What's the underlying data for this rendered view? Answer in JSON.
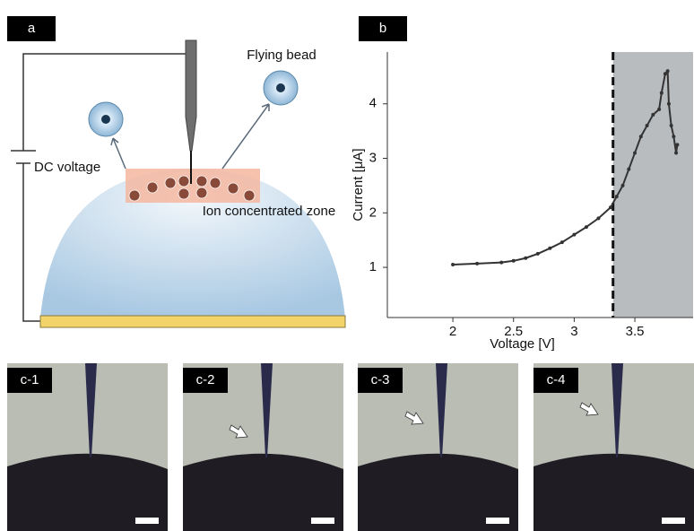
{
  "diagram": {
    "label": "a",
    "bead_label": "Flying bead",
    "voltage_label": "DC voltage",
    "zone_label": "Ion concentrated zone"
  },
  "chart_data": {
    "type": "line",
    "label": "b",
    "x_label": "Voltage [V]",
    "y_label": "Current [μA]",
    "x": [
      2.0,
      2.2,
      2.4,
      2.5,
      2.6,
      2.7,
      2.8,
      2.9,
      3.0,
      3.1,
      3.2,
      3.3,
      3.35,
      3.4,
      3.45,
      3.5,
      3.55,
      3.6,
      3.65,
      3.7,
      3.72,
      3.75,
      3.77,
      3.78,
      3.8,
      3.82,
      3.84,
      3.85
    ],
    "values": [
      1.05,
      1.07,
      1.09,
      1.12,
      1.17,
      1.25,
      1.35,
      1.46,
      1.6,
      1.74,
      1.9,
      2.1,
      2.3,
      2.5,
      2.8,
      3.1,
      3.4,
      3.6,
      3.8,
      3.9,
      4.2,
      4.55,
      4.6,
      4.0,
      3.6,
      3.4,
      3.1,
      3.25
    ],
    "color": "#333333",
    "threshold": 3.32,
    "shade_color": "#b9bcbf",
    "xlim": [
      1.46,
      3.98
    ],
    "ylim": [
      0.08,
      4.95
    ],
    "xticks": [
      2,
      2.5,
      3,
      3.5
    ],
    "yticks": [
      1,
      2,
      3,
      4
    ]
  },
  "micrographs": [
    {
      "label": "c-1"
    },
    {
      "label": "c-2"
    },
    {
      "label": "c-3"
    },
    {
      "label": "c-4"
    }
  ]
}
